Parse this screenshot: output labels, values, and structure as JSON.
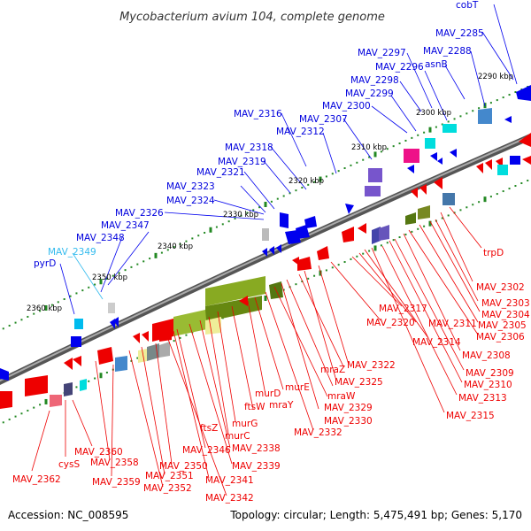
{
  "title": "Mycobacterium avium 104, complete genome",
  "footer": {
    "accession": "Accession: NC_008595",
    "summary": "Topology: circular; Length: 5,475,491 bp; Genes: 5,170"
  },
  "colors": {
    "forward": "#0000dd",
    "reverse": "#ee0000",
    "highlight": "#33bbee",
    "backbone": "#777777",
    "tick": "#228822",
    "text": "#000000"
  },
  "kbp_labels": [
    {
      "text": "2290 kbp"
    },
    {
      "text": "2300 kbp"
    },
    {
      "text": "2310 kbp"
    },
    {
      "text": "2320 kbp"
    },
    {
      "text": "2330 kbp"
    },
    {
      "text": "2340 kbp"
    },
    {
      "text": "2350 kbp"
    },
    {
      "text": "2360 kbp"
    }
  ],
  "forward_genes": [
    {
      "name": "cobT"
    },
    {
      "name": "MAV_2285"
    },
    {
      "name": "MAV_2288"
    },
    {
      "name": "asnB"
    },
    {
      "name": "MAV_2296"
    },
    {
      "name": "MAV_2297"
    },
    {
      "name": "MAV_2298"
    },
    {
      "name": "MAV_2299"
    },
    {
      "name": "MAV_2300"
    },
    {
      "name": "MAV_2307"
    },
    {
      "name": "MAV_2312"
    },
    {
      "name": "MAV_2316"
    },
    {
      "name": "MAV_2318"
    },
    {
      "name": "MAV_2319"
    },
    {
      "name": "MAV_2321"
    },
    {
      "name": "MAV_2323"
    },
    {
      "name": "MAV_2324"
    },
    {
      "name": "MAV_2326"
    },
    {
      "name": "MAV_2347"
    },
    {
      "name": "MAV_2348"
    },
    {
      "name": "MAV_2349"
    },
    {
      "name": "pyrD"
    }
  ],
  "reverse_genes": [
    {
      "name": "trpD"
    },
    {
      "name": "MAV_2302"
    },
    {
      "name": "MAV_2303"
    },
    {
      "name": "MAV_2304"
    },
    {
      "name": "MAV_2305"
    },
    {
      "name": "MAV_2306"
    },
    {
      "name": "MAV_2317"
    },
    {
      "name": "MAV_2311"
    },
    {
      "name": "MAV_2320"
    },
    {
      "name": "MAV_2314"
    },
    {
      "name": "MAV_2308"
    },
    {
      "name": "MAV_2309"
    },
    {
      "name": "MAV_2310"
    },
    {
      "name": "MAV_2313"
    },
    {
      "name": "MAV_2315"
    },
    {
      "name": "MAV_2322"
    },
    {
      "name": "mraZ"
    },
    {
      "name": "MAV_2325"
    },
    {
      "name": "murE"
    },
    {
      "name": "mraW"
    },
    {
      "name": "MAV_2329"
    },
    {
      "name": "murD"
    },
    {
      "name": "ftsW"
    },
    {
      "name": "mraY"
    },
    {
      "name": "MAV_2330"
    },
    {
      "name": "MAV_2332"
    },
    {
      "name": "murG"
    },
    {
      "name": "ftsZ"
    },
    {
      "name": "murC"
    },
    {
      "name": "MAV_2338"
    },
    {
      "name": "MAV_2339"
    },
    {
      "name": "MAV_2346"
    },
    {
      "name": "MAV_2341"
    },
    {
      "name": "MAV_2342"
    },
    {
      "name": "MAV_2350"
    },
    {
      "name": "MAV_2351"
    },
    {
      "name": "MAV_2352"
    },
    {
      "name": "MAV_2358"
    },
    {
      "name": "MAV_2359"
    },
    {
      "name": "MAV_2360"
    },
    {
      "name": "cysS"
    },
    {
      "name": "MAV_2362"
    }
  ]
}
